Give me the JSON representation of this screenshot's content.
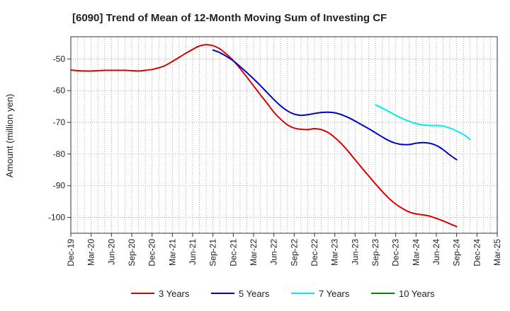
{
  "chart_data": {
    "type": "line",
    "title": "[6090]  Trend of Mean of 12-Month Moving Sum of Investing CF",
    "xlabel": "",
    "ylabel": "Amount (million yen)",
    "ylim": [
      -105,
      -43
    ],
    "yticks": [
      -50,
      -60,
      -70,
      -80,
      -90,
      -100
    ],
    "ytick_labels": [
      "-50",
      "-60",
      "-70",
      "-80",
      "-90",
      "-100"
    ],
    "x_start": "Dec-19",
    "x_end": "Mar-25",
    "x_tick_labels": [
      "Dec-19",
      "Mar-20",
      "Jun-20",
      "Sep-20",
      "Dec-20",
      "Mar-21",
      "Jun-21",
      "Sep-21",
      "Dec-21",
      "Mar-22",
      "Jun-22",
      "Sep-22",
      "Dec-22",
      "Mar-23",
      "Jun-23",
      "Sep-23",
      "Dec-23",
      "Mar-24",
      "Jun-24",
      "Sep-24",
      "Dec-24",
      "Mar-25"
    ],
    "grid": true,
    "legend_position": "bottom",
    "series": [
      {
        "name": "3 Years",
        "color": "#dd0000",
        "start_month_index": 0,
        "values": [
          -53.5,
          -53.7,
          -53.8,
          -53.8,
          -53.7,
          -53.6,
          -53.6,
          -53.6,
          -53.6,
          -53.7,
          -53.8,
          -53.6,
          -53.3,
          -52.8,
          -52.0,
          -50.8,
          -49.5,
          -48.2,
          -47.0,
          -45.9,
          -45.5,
          -45.8,
          -46.8,
          -48.5,
          -50.5,
          -53.0,
          -55.7,
          -58.5,
          -61.3,
          -64.0,
          -66.8,
          -69.0,
          -70.8,
          -71.8,
          -72.2,
          -72.3,
          -72.0,
          -72.3,
          -73.2,
          -74.8,
          -76.8,
          -79.2,
          -81.8,
          -84.4,
          -86.9,
          -89.4,
          -91.8,
          -94.0,
          -95.8,
          -97.2,
          -98.3,
          -98.9,
          -99.2,
          -99.6,
          -100.3,
          -101.1,
          -102.0,
          -102.9
        ]
      },
      {
        "name": "5 Years",
        "color": "#0000cc",
        "start_month_index": 21,
        "values": [
          -47.2,
          -48.0,
          -49.2,
          -50.6,
          -52.4,
          -54.3,
          -56.3,
          -58.4,
          -60.6,
          -62.8,
          -64.8,
          -66.4,
          -67.4,
          -67.8,
          -67.6,
          -67.2,
          -66.9,
          -66.8,
          -67.0,
          -67.6,
          -68.5,
          -69.6,
          -70.8,
          -72.0,
          -73.3,
          -74.6,
          -75.8,
          -76.6,
          -77.0,
          -77.0,
          -76.6,
          -76.4,
          -76.6,
          -77.3,
          -78.6,
          -80.3,
          -81.8
        ]
      },
      {
        "name": "7 Years",
        "color": "#00eeee",
        "start_month_index": 45,
        "values": [
          -64.5,
          -65.5,
          -66.6,
          -67.8,
          -68.8,
          -69.7,
          -70.4,
          -70.8,
          -71.0,
          -71.0,
          -71.2,
          -71.8,
          -72.7,
          -73.8,
          -75.4
        ]
      },
      {
        "name": "10 Years",
        "color": "#008800",
        "start_month_index": 0,
        "values": []
      }
    ]
  }
}
